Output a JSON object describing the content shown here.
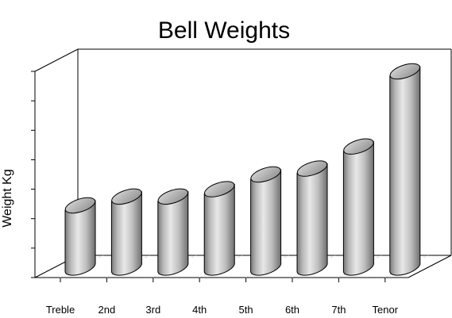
{
  "chart_data": {
    "type": "bar",
    "style": "3d-cylinder",
    "title": "Bell Weights",
    "xlabel": "",
    "ylabel": "Weight Kg",
    "categories": [
      "Treble",
      "2nd",
      "3rd",
      "4th",
      "5th",
      "6th",
      "7th",
      "Tenor"
    ],
    "values": [
      2.1,
      2.4,
      2.4,
      2.65,
      3.15,
      3.35,
      4.1,
      6.65
    ],
    "ylim": [
      0,
      7
    ],
    "y_ticks": 7,
    "y_tick_labels_shown": false,
    "grid": false,
    "legend": "none",
    "colors": {
      "bar_dark": "#777777",
      "bar_light": "#e6e6e6",
      "bar_top": "#b0b0b0",
      "outline": "#000000"
    }
  }
}
